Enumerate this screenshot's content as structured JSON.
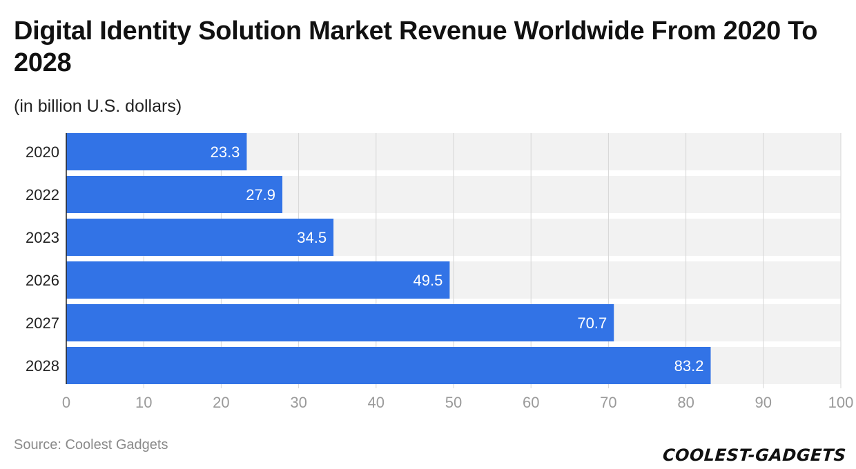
{
  "header": {
    "title": "Digital Identity Solution Market Revenue Worldwide From 2020 To 2028",
    "subtitle": "(in billion U.S. dollars)"
  },
  "footer": {
    "source": "Source: Coolest Gadgets",
    "logo_text": "COOLEST-GADGETS"
  },
  "colors": {
    "bar": "#3273e6",
    "track": "#f2f2f2",
    "grid": "#d6d6d6",
    "tick": "#9a9a9a",
    "label": "#222222",
    "value_label": "#ffffff"
  },
  "chart_data": {
    "type": "bar",
    "orientation": "horizontal",
    "title": "Digital Identity Solution Market Revenue Worldwide From 2020 To 2028",
    "subtitle": "(in billion U.S. dollars)",
    "categories": [
      "2020",
      "2022",
      "2023",
      "2026",
      "2027",
      "2028"
    ],
    "values": [
      23.3,
      27.9,
      34.5,
      49.5,
      70.7,
      83.2
    ],
    "value_labels": [
      "23.3",
      "27.9",
      "34.5",
      "49.5",
      "70.7",
      "83.2"
    ],
    "xlabel": "",
    "ylabel": "",
    "xlim": [
      0,
      100
    ],
    "xticks": [
      0,
      10,
      20,
      30,
      40,
      50,
      60,
      70,
      80,
      90,
      100
    ],
    "grid": true,
    "legend": "none"
  }
}
